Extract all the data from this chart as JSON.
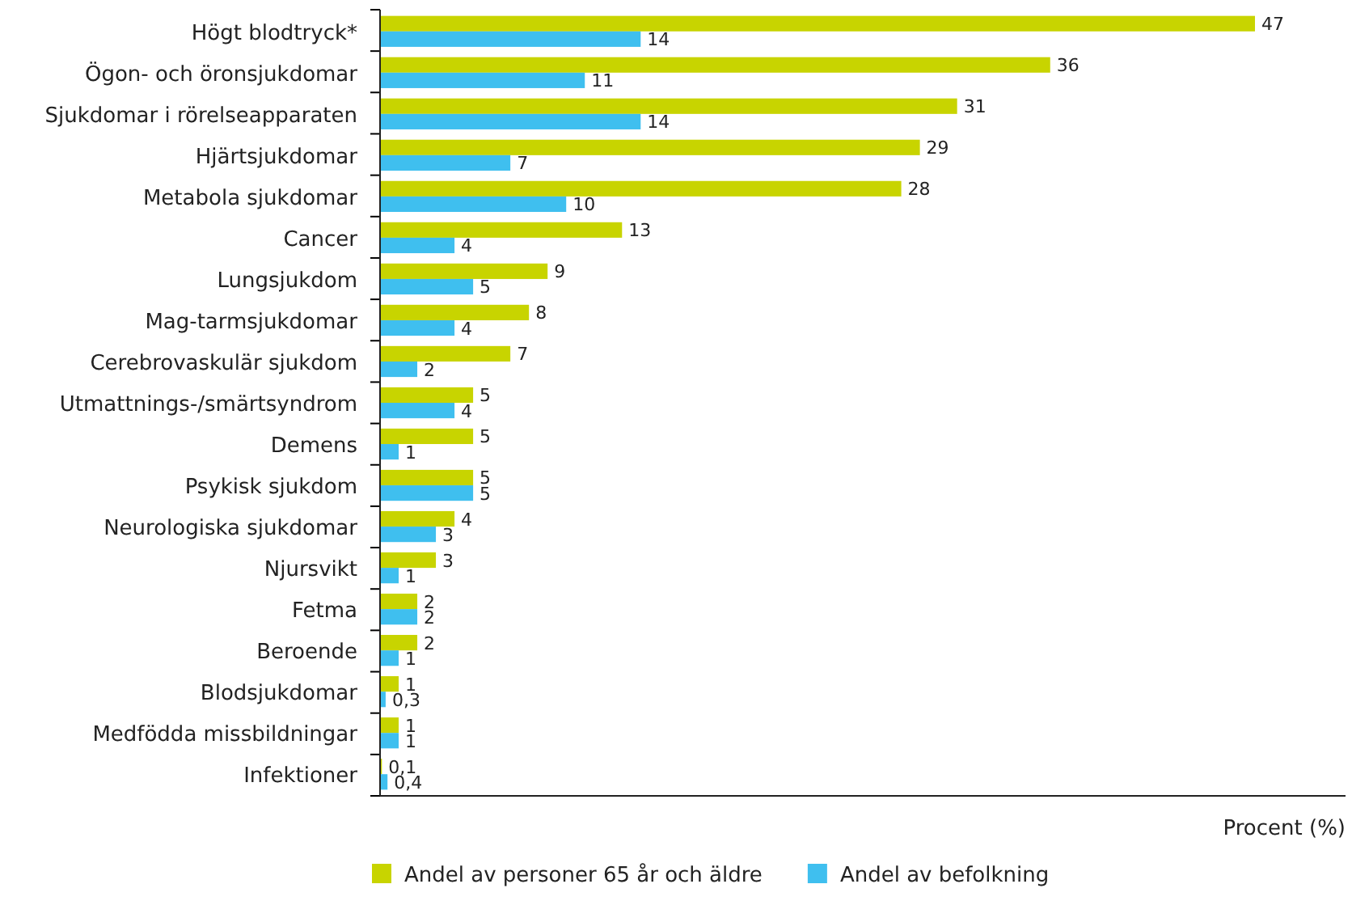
{
  "chart_data": {
    "type": "bar",
    "orientation": "horizontal",
    "xlabel": "Procent (%)",
    "legend": "bottom",
    "categories": [
      "Högt blodtryck*",
      "Ögon- och öronsjukdomar",
      "Sjukdomar i rörelseapparaten",
      "Hjärtsjukdomar",
      "Metabola sjukdomar",
      "Cancer",
      "Lungsjukdom",
      "Mag-tarmsjukdomar",
      "Cerebrovaskulär sjukdom",
      "Utmattnings-/smärtsyndrom",
      "Demens",
      "Psykisk sjukdom",
      "Neurologiska sjukdomar",
      "Njursvikt",
      "Fetma",
      "Beroende",
      "Blodsjukdomar",
      "Medfödda missbildningar",
      "Infektioner"
    ],
    "series": [
      {
        "name": "Andel av personer 65 år och äldre",
        "color": "#c8d400",
        "values": [
          47,
          36,
          31,
          29,
          28,
          13,
          9,
          8,
          7,
          5,
          5,
          5,
          4,
          3,
          2,
          2,
          1,
          1,
          0.1
        ],
        "value_labels": [
          "47",
          "36",
          "31",
          "29",
          "28",
          "13",
          "9",
          "8",
          "7",
          "5",
          "5",
          "5",
          "4",
          "3",
          "2",
          "2",
          "1",
          "1",
          "0,1"
        ]
      },
      {
        "name": "Andel av befolkning",
        "color": "#3fbfef",
        "values": [
          14,
          11,
          14,
          7,
          10,
          4,
          5,
          4,
          2,
          4,
          1,
          5,
          3,
          1,
          2,
          1,
          0.3,
          1,
          0.4
        ],
        "value_labels": [
          "14",
          "11",
          "14",
          "7",
          "10",
          "4",
          "5",
          "4",
          "2",
          "4",
          "1",
          "5",
          "3",
          "1",
          "2",
          "1",
          "0,3",
          "1",
          "0,4"
        ]
      }
    ]
  }
}
